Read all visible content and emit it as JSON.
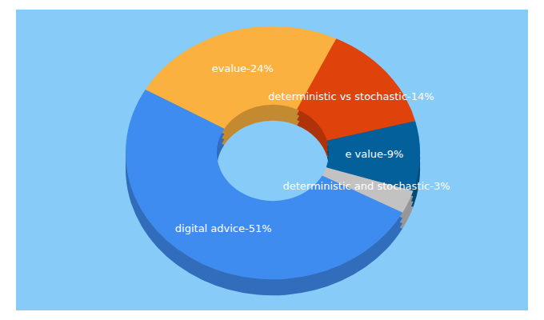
{
  "chart_data": {
    "type": "pie",
    "values": [
      24,
      14,
      9,
      3,
      51
    ],
    "value_labels": [
      "evalue-24%",
      "deterministic vs stochastic-14%",
      "e value-9%",
      "deterministic and stochastic-3%",
      "digital advice-51%"
    ],
    "colors": [
      "#fbb13f",
      "#e0420b",
      "#03609b",
      "#c2c2c2",
      "#3f8cf0"
    ],
    "data_labels": true
  }
}
